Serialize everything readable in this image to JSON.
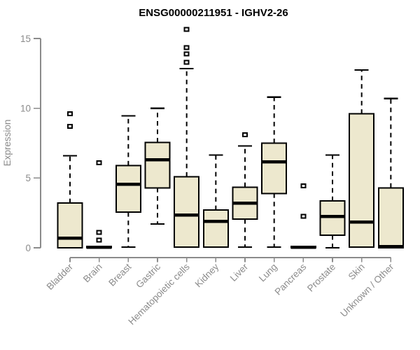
{
  "chart_data": {
    "type": "boxplot",
    "title": "ENSG00000211951 - IGHV2-26",
    "ylabel": "Expression",
    "xlabel": "",
    "yticks": [
      0,
      5,
      10,
      15
    ],
    "ylim": [
      0,
      15.8
    ],
    "grid": false,
    "legend": null,
    "categories": [
      "Bladder",
      "Brain",
      "Breast",
      "Gastric",
      "Hematopoietic cells",
      "Kidney",
      "Liver",
      "Lung",
      "Pancreas",
      "Prostate",
      "Skin",
      "Unknown / Other"
    ],
    "series": [
      {
        "name": "Bladder",
        "low": 0,
        "q1": 0,
        "median": 0.7,
        "q3": 3.2,
        "high": 6.6,
        "outliers": [
          8.7,
          9.6
        ]
      },
      {
        "name": "Brain",
        "low": 0,
        "q1": 0,
        "median": 0.05,
        "q3": 0.1,
        "high": 0.1,
        "outliers": [
          0.55,
          1.1,
          6.1
        ]
      },
      {
        "name": "Breast",
        "low": 0.05,
        "q1": 2.55,
        "median": 4.55,
        "q3": 5.9,
        "high": 9.45,
        "outliers": []
      },
      {
        "name": "Gastric",
        "low": 1.7,
        "q1": 4.3,
        "median": 6.3,
        "q3": 7.55,
        "high": 10.0,
        "outliers": []
      },
      {
        "name": "Hematopoietic cells",
        "low": 0.05,
        "q1": 0.05,
        "median": 2.35,
        "q3": 5.1,
        "high": 12.85,
        "outliers": [
          13.3,
          13.9,
          14.35,
          15.65
        ]
      },
      {
        "name": "Kidney",
        "low": 0.05,
        "q1": 0.05,
        "median": 1.9,
        "q3": 2.7,
        "high": 6.65,
        "outliers": []
      },
      {
        "name": "Liver",
        "low": 0.05,
        "q1": 2.05,
        "median": 3.2,
        "q3": 4.35,
        "high": 7.3,
        "outliers": [
          8.1
        ]
      },
      {
        "name": "Lung",
        "low": 0.05,
        "q1": 3.9,
        "median": 6.15,
        "q3": 7.5,
        "high": 10.8,
        "outliers": []
      },
      {
        "name": "Pancreas",
        "low": 0,
        "q1": 0,
        "median": 0.05,
        "q3": 0.1,
        "high": 0.1,
        "outliers": [
          2.25,
          4.45
        ]
      },
      {
        "name": "Prostate",
        "low": 0,
        "q1": 0.9,
        "median": 2.25,
        "q3": 3.35,
        "high": 6.65,
        "outliers": []
      },
      {
        "name": "Skin",
        "low": 0.05,
        "q1": 0.05,
        "median": 1.85,
        "q3": 9.6,
        "high": 12.75,
        "outliers": []
      },
      {
        "name": "Unknown / Other",
        "low": 0,
        "q1": 0,
        "median": 0.1,
        "q3": 4.3,
        "high": 10.7,
        "outliers": []
      }
    ],
    "colors": {
      "box_fill": "#EDE8CE",
      "box_border": "#000000",
      "median": "#000000",
      "whisker": "#000000",
      "outlier": "#000000",
      "axis": "#8b8b8b",
      "tick_text": "#8b8b8b",
      "title_text": "#000000",
      "background": "#ffffff"
    }
  }
}
